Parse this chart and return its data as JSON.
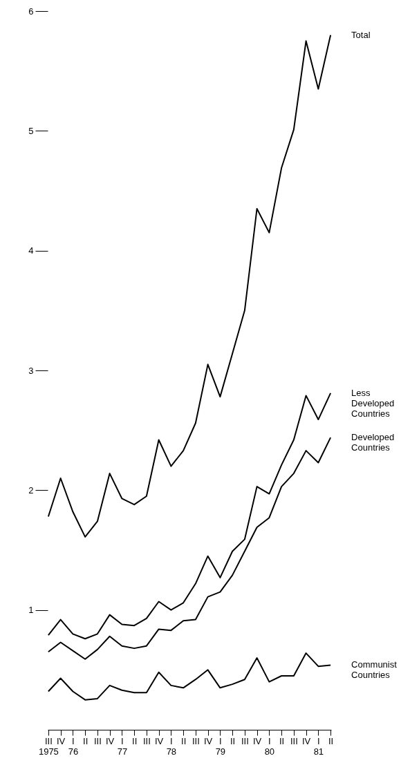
{
  "chart_data": {
    "type": "line",
    "categories": [
      "III\n1975",
      "IV",
      "I\n76",
      "II",
      "III",
      "IV",
      "I\n77",
      "II",
      "III",
      "IV",
      "I\n78",
      "II",
      "III",
      "IV",
      "I\n79",
      "II",
      "III",
      "IV",
      "I\n80",
      "II",
      "III",
      "IV",
      "I\n81",
      "II"
    ],
    "series": [
      {
        "name": "Total",
        "color": "#000000",
        "values": [
          1.78,
          2.1,
          1.82,
          1.61,
          1.74,
          2.14,
          1.93,
          1.88,
          1.95,
          2.42,
          2.2,
          2.33,
          2.56,
          3.05,
          2.78,
          3.14,
          3.5,
          4.35,
          4.15,
          4.69,
          5.01,
          5.75,
          5.35,
          5.8
        ]
      },
      {
        "name": "Less Developed Countries",
        "color": "#000000",
        "values": [
          0.79,
          0.92,
          0.8,
          0.76,
          0.8,
          0.96,
          0.88,
          0.87,
          0.93,
          1.07,
          1.0,
          1.06,
          1.22,
          1.45,
          1.27,
          1.49,
          1.59,
          2.03,
          1.97,
          2.21,
          2.42,
          2.79,
          2.59,
          2.81
        ]
      },
      {
        "name": "Developed Countries",
        "color": "#000000",
        "values": [
          0.65,
          0.73,
          0.66,
          0.59,
          0.67,
          0.78,
          0.7,
          0.68,
          0.7,
          0.84,
          0.83,
          0.91,
          0.92,
          1.11,
          1.15,
          1.29,
          1.49,
          1.69,
          1.77,
          2.03,
          2.14,
          2.33,
          2.23,
          2.44
        ]
      },
      {
        "name": "Communist Countries",
        "color": "#000000",
        "values": [
          0.32,
          0.43,
          0.32,
          0.25,
          0.26,
          0.37,
          0.33,
          0.31,
          0.31,
          0.48,
          0.37,
          0.35,
          0.42,
          0.5,
          0.35,
          0.38,
          0.42,
          0.6,
          0.4,
          0.45,
          0.45,
          0.64,
          0.53,
          0.54
        ]
      }
    ],
    "ylim": [
      0,
      6
    ],
    "yticks": [
      1,
      2,
      3,
      4,
      5,
      6
    ],
    "grid": false,
    "legend": false,
    "marker": "none",
    "line_style": "solid"
  }
}
